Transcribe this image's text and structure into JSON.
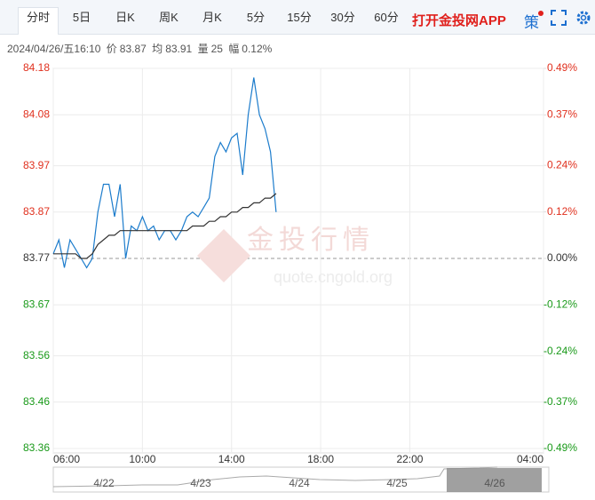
{
  "toolbar": {
    "tabs": [
      "分时",
      "5日",
      "日K",
      "周K",
      "月K",
      "5分",
      "15分",
      "30分",
      "60分"
    ],
    "active_tab": 0,
    "app_link": "打开金投网APP",
    "strategy": "策"
  },
  "info": {
    "datetime": "2024/04/26/五16:10",
    "price_label": "价",
    "price": 83.87,
    "avg_label": "均",
    "avg": 83.91,
    "volume_label": "量",
    "volume": 25,
    "range_label": "幅",
    "range": "0.12%"
  },
  "chart_data": {
    "type": "line",
    "watermark": {
      "title": "金投行情",
      "url": "quote.cngold.org"
    },
    "x": [
      6,
      6.25,
      6.5,
      6.75,
      7,
      7.25,
      7.5,
      7.75,
      8,
      8.25,
      8.5,
      8.75,
      9,
      9.25,
      9.5,
      9.75,
      10,
      10.25,
      10.5,
      10.75,
      11,
      11.25,
      11.5,
      11.75,
      12,
      12.25,
      12.5,
      12.75,
      13,
      13.25,
      13.5,
      13.75,
      14,
      14.25,
      14.5,
      14.75,
      15,
      15.25,
      15.5,
      15.75,
      16
    ],
    "series": [
      {
        "color": "#1c7ccc",
        "values": [
          83.78,
          83.81,
          83.75,
          83.81,
          83.79,
          83.77,
          83.75,
          83.77,
          83.87,
          83.93,
          83.93,
          83.86,
          83.93,
          83.77,
          83.84,
          83.83,
          83.86,
          83.83,
          83.84,
          83.81,
          83.83,
          83.83,
          83.81,
          83.83,
          83.86,
          83.87,
          83.86,
          83.88,
          83.9,
          83.99,
          84.02,
          84.0,
          84.03,
          84.04,
          83.95,
          84.08,
          84.16,
          84.08,
          84.05,
          84.0,
          83.87
        ]
      },
      {
        "color": "#333333",
        "values": [
          83.78,
          83.78,
          83.78,
          83.78,
          83.78,
          83.77,
          83.77,
          83.78,
          83.8,
          83.81,
          83.82,
          83.82,
          83.83,
          83.83,
          83.83,
          83.83,
          83.83,
          83.83,
          83.83,
          83.83,
          83.83,
          83.83,
          83.83,
          83.83,
          83.83,
          83.84,
          83.84,
          83.84,
          83.85,
          83.85,
          83.86,
          83.86,
          83.87,
          83.87,
          83.88,
          83.88,
          83.89,
          83.89,
          83.9,
          83.9,
          83.91
        ]
      }
    ],
    "xlim": [
      6,
      28
    ],
    "xticks": [
      {
        "value": 6,
        "label": "06:00"
      },
      {
        "value": 10,
        "label": "10:00"
      },
      {
        "value": 14,
        "label": "14:00"
      },
      {
        "value": 18,
        "label": "18:00"
      },
      {
        "value": 22,
        "label": "22:00"
      },
      {
        "value": 28,
        "label": "04:00"
      }
    ],
    "ylim": [
      83.36,
      84.18
    ],
    "yticks": [
      84.18,
      84.08,
      83.97,
      83.87,
      83.77,
      83.67,
      83.56,
      83.46,
      83.36
    ],
    "y2lim": [
      -0.49,
      0.49
    ],
    "y2ticks": [
      {
        "value": 0.49,
        "label": "0.49%"
      },
      {
        "value": 0.37,
        "label": "0.37%"
      },
      {
        "value": 0.24,
        "label": "0.24%"
      },
      {
        "value": 0.12,
        "label": "0.12%"
      },
      {
        "value": 0,
        "label": "0.00%"
      },
      {
        "value": -0.12,
        "label": "-0.12%"
      },
      {
        "value": -0.24,
        "label": "-0.24%"
      },
      {
        "value": -0.37,
        "label": "-0.37%"
      },
      {
        "value": -0.49,
        "label": "-0.49%"
      }
    ],
    "baseline": 83.77,
    "up_color": "#e0301e",
    "down_color": "#1a9a1a",
    "flat_color": "#333333",
    "grid": true,
    "navigator": {
      "labels": [
        "4/22",
        "4/23",
        "4/24",
        "4/25",
        "4/26"
      ]
    }
  }
}
